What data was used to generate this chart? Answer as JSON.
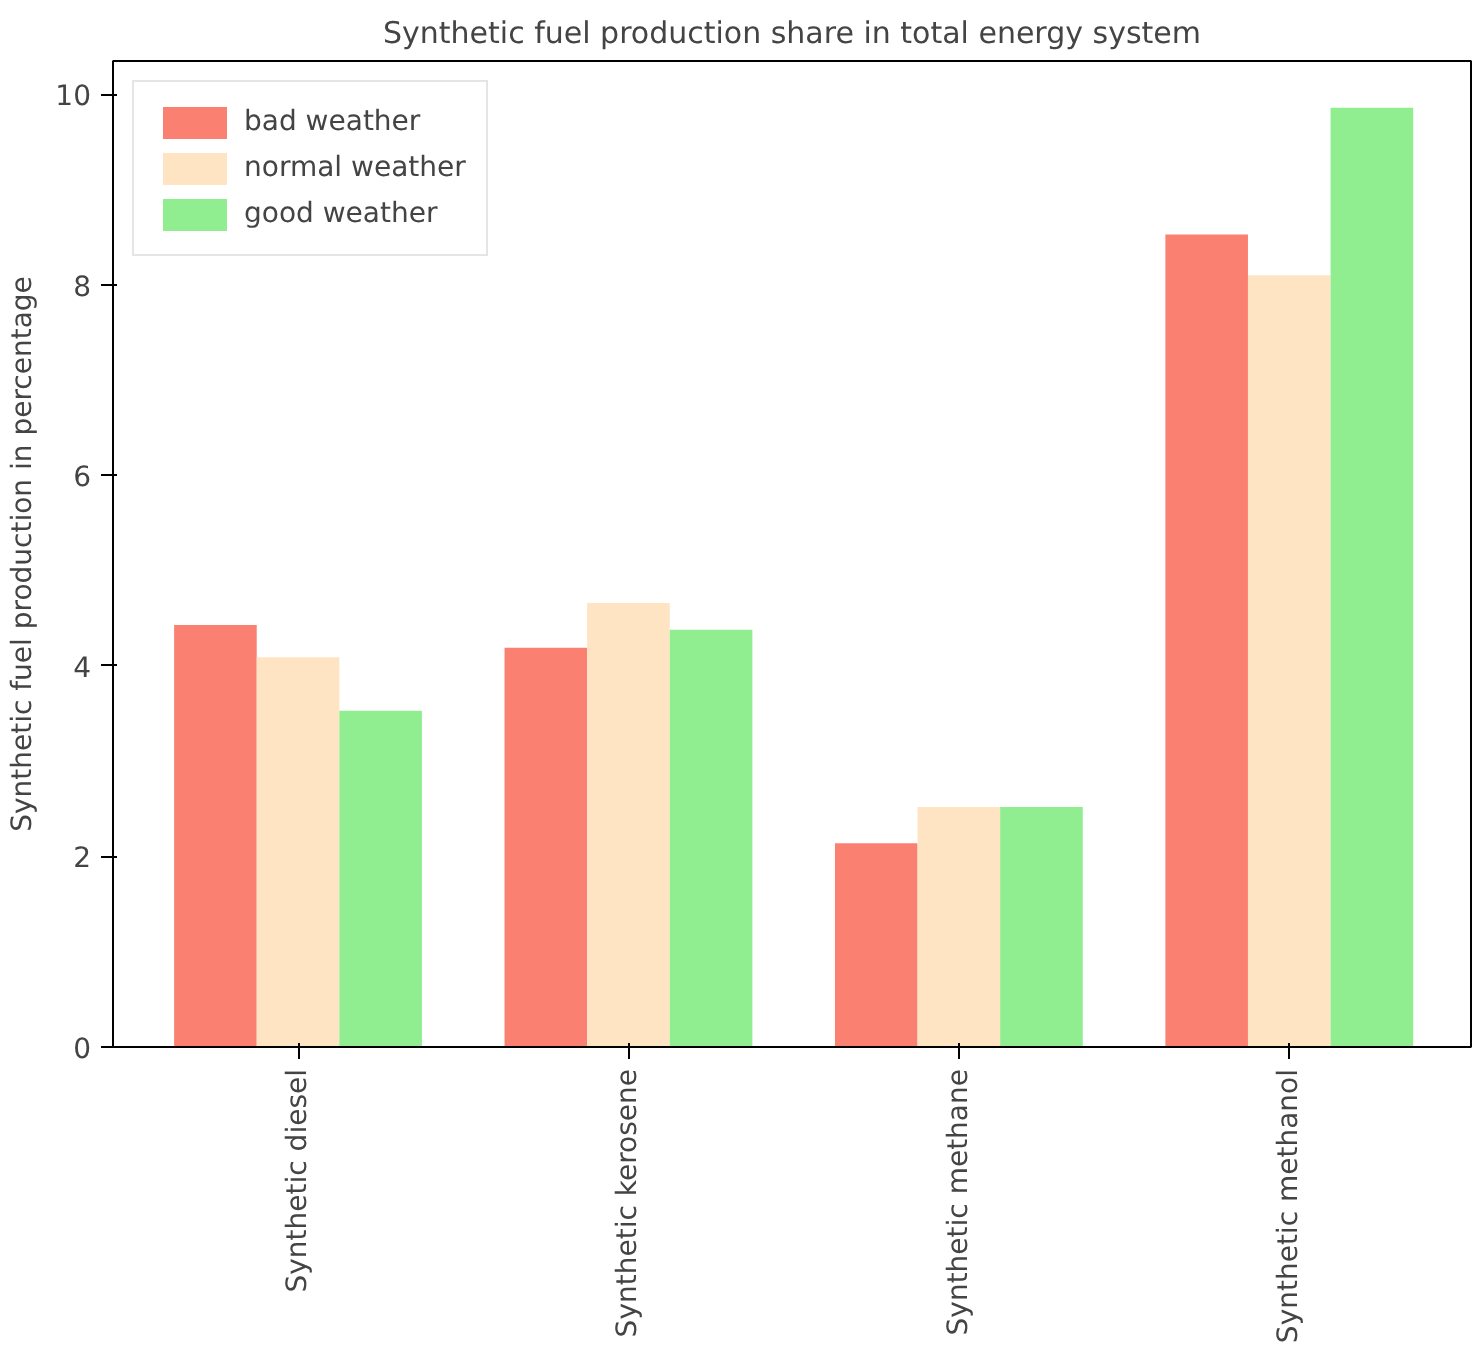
{
  "chart_data": {
    "type": "bar",
    "title": "Synthetic fuel production share in total energy system",
    "ylabel": "Synthetic fuel production in percentage",
    "categories": [
      "Synthetic diesel",
      "Synthetic kerosene",
      "Synthetic methane",
      "Synthetic methanol"
    ],
    "series": [
      {
        "name": "bad weather",
        "color": "#fa8072",
        "values": [
          4.43,
          4.19,
          2.14,
          8.53
        ]
      },
      {
        "name": "normal weather",
        "color": "#ffe4c4",
        "values": [
          4.09,
          4.66,
          2.52,
          8.1
        ]
      },
      {
        "name": "good weather",
        "color": "#90ee90",
        "values": [
          3.53,
          4.38,
          2.52,
          9.86
        ]
      }
    ],
    "ylim": [
      0,
      10.35
    ],
    "yticks": [
      0,
      2,
      4,
      6,
      8,
      10
    ],
    "grid": false,
    "legend": "top left"
  }
}
